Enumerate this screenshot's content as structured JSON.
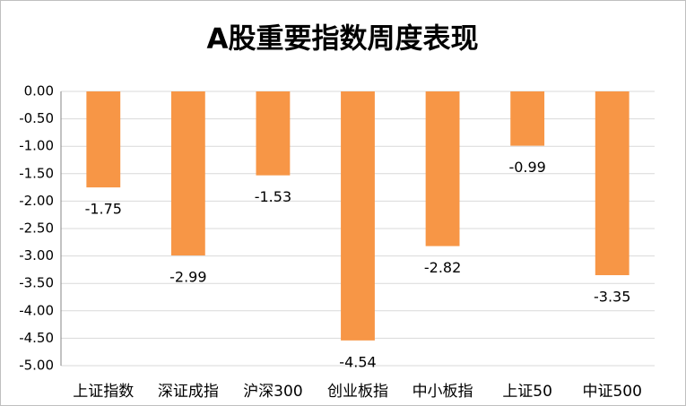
{
  "chart_data": {
    "type": "bar",
    "title": "A股重要指数周度表现",
    "categories": [
      "上证指数",
      "深证成指",
      "沪深300",
      "创业板指",
      "中小板指",
      "上证50",
      "中证500"
    ],
    "values": [
      -1.75,
      -2.99,
      -1.53,
      -4.54,
      -2.82,
      -0.99,
      -3.35
    ],
    "color": "#f79646",
    "ylim": [
      -5,
      0
    ],
    "yticks": [
      {
        "value": 0,
        "label": "0.00"
      },
      {
        "value": -0.5,
        "label": "-0.50"
      },
      {
        "value": -1,
        "label": "-1.00"
      },
      {
        "value": -1.5,
        "label": "-1.50"
      },
      {
        "value": -2,
        "label": "-2.00"
      },
      {
        "value": -2.5,
        "label": "-2.50"
      },
      {
        "value": -3,
        "label": "-3.00"
      },
      {
        "value": -3.5,
        "label": "-3.50"
      },
      {
        "value": -4,
        "label": "-4.00"
      },
      {
        "value": -4.5,
        "label": "-4.50"
      },
      {
        "value": -5,
        "label": "-5.00"
      }
    ],
    "grid": true
  }
}
